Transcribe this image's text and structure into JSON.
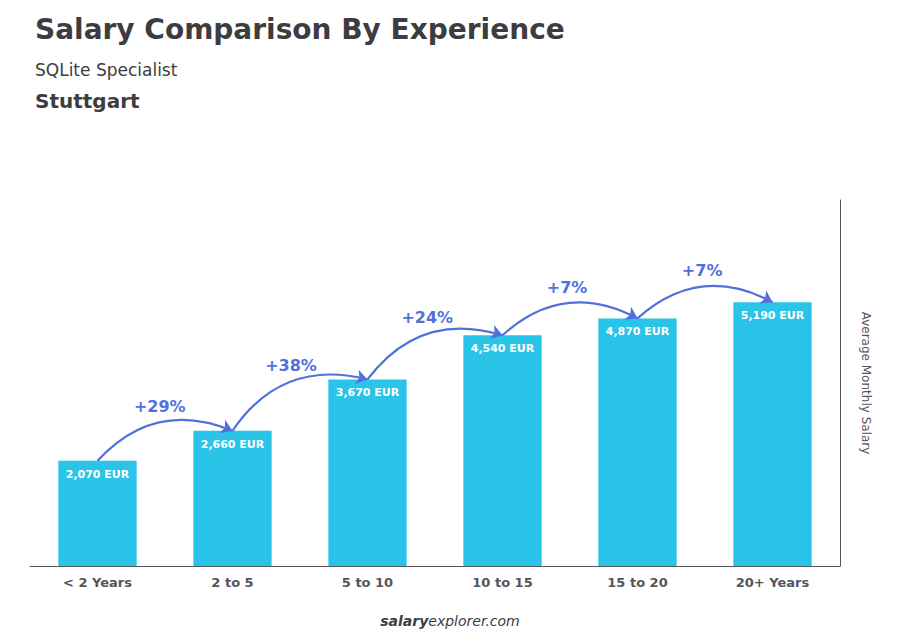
{
  "chart_data": {
    "type": "bar",
    "title": "Salary Comparison By Experience",
    "subtitle": [
      "SQLite Specialist",
      "Stuttgart"
    ],
    "ylabel": "Average Monthly Salary",
    "categories": [
      "< 2 Years",
      "2 to 5",
      "5 to 10",
      "10 to 15",
      "15 to 20",
      "20+ Years"
    ],
    "values": [
      2070,
      2660,
      3670,
      4540,
      4870,
      5190
    ],
    "value_labels": [
      "2,070 EUR",
      "2,660 EUR",
      "3,670 EUR",
      "4,540 EUR",
      "4,870 EUR",
      "5,190 EUR"
    ],
    "data_labels": true,
    "color": "#29C4E8",
    "ylim": [
      0,
      7200
    ],
    "tick_labels": "x",
    "grid": false,
    "annotations": [
      {
        "text": "+29%",
        "from": "< 2 Years",
        "to": "2 to 5"
      },
      {
        "text": "+38%",
        "from": "2 to 5",
        "to": "5 to 10"
      },
      {
        "text": "+24%",
        "from": "5 to 10",
        "to": "10 to 15"
      },
      {
        "text": "+7%",
        "from": "10 to 15",
        "to": "15 to 20"
      },
      {
        "text": "+7%",
        "from": "15 to 20",
        "to": "20+ Years"
      }
    ],
    "watermark": [
      "salary",
      "explorer.com"
    ]
  }
}
